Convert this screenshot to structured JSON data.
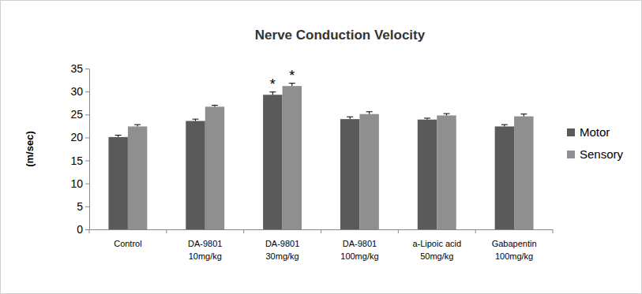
{
  "chart_data": {
    "type": "bar",
    "title": "Nerve Conduction Velocity",
    "y_label": "(m/sec)",
    "categories": [
      "Control",
      "DA-9801 10mg/kg",
      "DA-9801 30mg/kg",
      "DA-9801 100mg/kg",
      "a-Lipoic acid 50mg/kg",
      "Gabapentin 100mg/kg"
    ],
    "series": [
      {
        "name": "Motor",
        "color": "#5a5a5a",
        "values": [
          20.1,
          23.6,
          29.3,
          24.0,
          23.9,
          22.4
        ],
        "errors": [
          0.4,
          0.4,
          0.6,
          0.5,
          0.3,
          0.4
        ]
      },
      {
        "name": "Sensory",
        "color": "#8f8f8f",
        "values": [
          22.4,
          26.7,
          31.2,
          25.1,
          24.8,
          24.6
        ],
        "errors": [
          0.4,
          0.3,
          0.6,
          0.5,
          0.4,
          0.5
        ]
      }
    ],
    "annotations": [
      {
        "text": "*",
        "category": "DA-9801 30mg/kg",
        "series": "Motor"
      },
      {
        "text": "*",
        "category": "DA-9801 30mg/kg",
        "series": "Sensory"
      }
    ],
    "ylim": [
      0,
      35
    ],
    "yticks": [
      0,
      5,
      10,
      15,
      20,
      25,
      30,
      35
    ],
    "grid": false,
    "legend": "right"
  }
}
